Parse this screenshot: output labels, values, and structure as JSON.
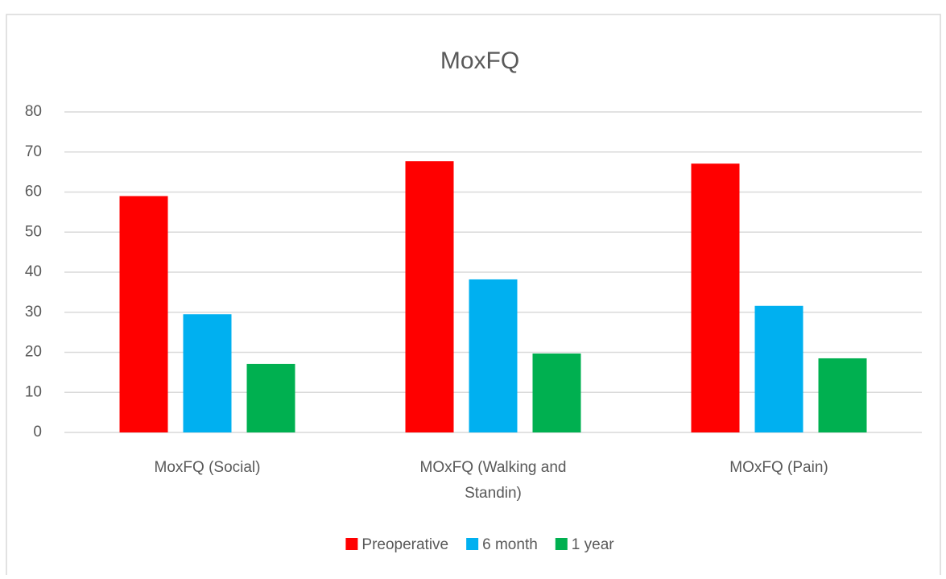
{
  "chart_data": {
    "type": "bar",
    "title": "MoxFQ",
    "categories": [
      "MoxFQ (Social)",
      "MOxFQ (Walking and Standin)",
      "MOxFQ (Pain)"
    ],
    "series": [
      {
        "name": "Preoperative",
        "color": "#ff0000",
        "values": [
          59,
          67.7,
          67.1
        ]
      },
      {
        "name": "6 month",
        "color": "#00b0f0",
        "values": [
          29.5,
          38.2,
          31.6
        ]
      },
      {
        "name": "1 year",
        "color": "#00b050",
        "values": [
          17.1,
          19.7,
          18.5
        ]
      }
    ],
    "ylim": [
      0,
      80
    ],
    "yticks": [
      0,
      10,
      20,
      30,
      40,
      50,
      60,
      70,
      80
    ],
    "grid": true,
    "legend": "bottom"
  }
}
